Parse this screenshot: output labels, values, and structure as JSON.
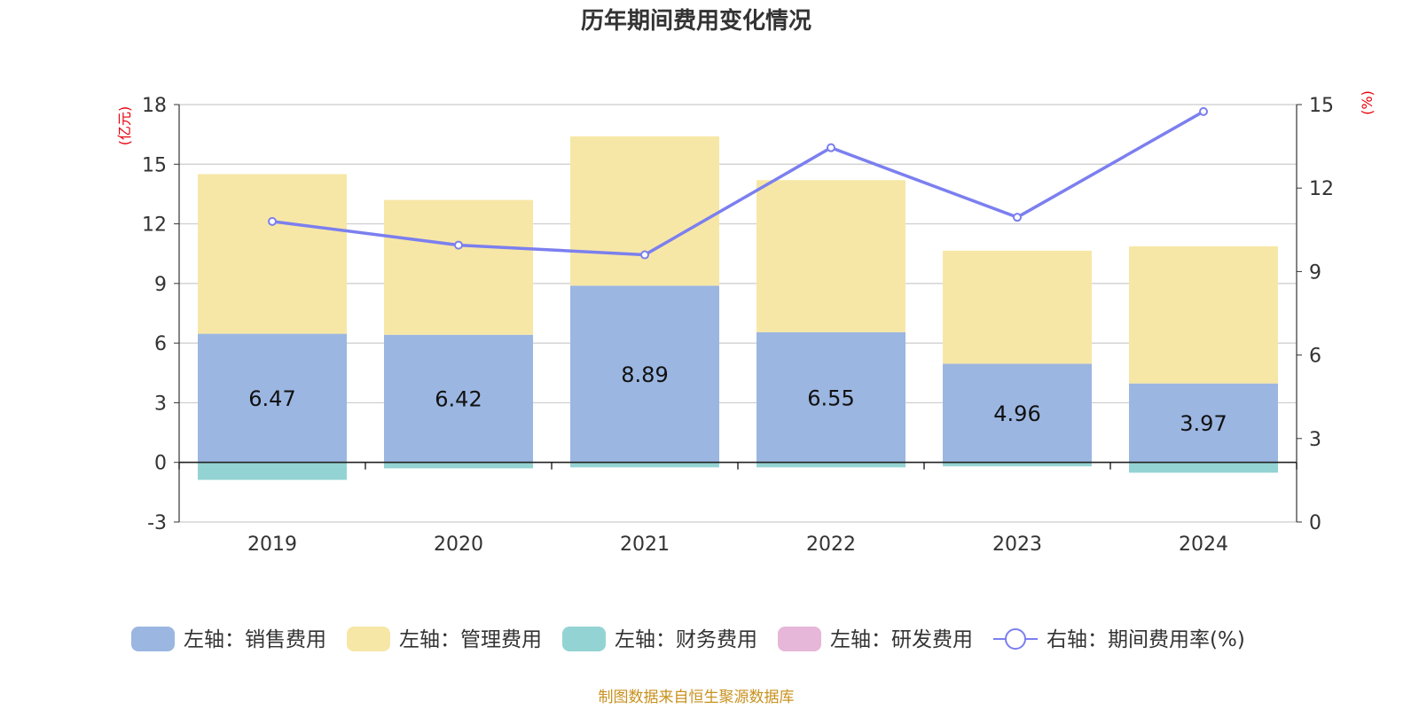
{
  "title": "历年期间费用变化情况",
  "source": "制图数据来自恒生聚源数据库",
  "chart_data": {
    "type": "bar",
    "categories": [
      "2019",
      "2020",
      "2021",
      "2022",
      "2023",
      "2024"
    ],
    "left_axis": {
      "unit": "(亿元)",
      "ylim": [
        -3,
        18
      ],
      "ticks": [
        "-3",
        "0",
        "3",
        "6",
        "9",
        "12",
        "15",
        "18"
      ]
    },
    "right_axis": {
      "unit": "(%)",
      "ylim": [
        0,
        15
      ],
      "ticks": [
        "0",
        "3",
        "6",
        "9",
        "12",
        "15"
      ]
    },
    "grid": true,
    "legend_position": "bottom",
    "series": [
      {
        "name": "左轴：销售费用",
        "type": "bar",
        "axis": "left",
        "color": "#9bb6e1",
        "values": [
          6.47,
          6.42,
          8.89,
          6.55,
          4.96,
          3.97
        ],
        "labels": [
          "6.47",
          "6.42",
          "8.89",
          "6.55",
          "4.96",
          "3.97"
        ]
      },
      {
        "name": "左轴：管理费用",
        "type": "bar",
        "axis": "left",
        "color": "#f7e7a6",
        "values": [
          8.03,
          6.78,
          7.51,
          7.65,
          5.69,
          6.9
        ]
      },
      {
        "name": "左轴：财务费用",
        "type": "bar",
        "axis": "left",
        "color": "#94d3d3",
        "values": [
          -0.88,
          -0.3,
          -0.25,
          -0.25,
          -0.2,
          -0.52
        ]
      },
      {
        "name": "左轴：研发费用",
        "type": "bar",
        "axis": "left",
        "color": "#e6b7d8",
        "values": [
          0,
          0,
          0,
          0,
          0,
          0
        ]
      },
      {
        "name": "右轴：期间费用率(%)",
        "type": "line",
        "axis": "right",
        "color": "#7b7fef",
        "values": [
          10.8,
          9.95,
          9.6,
          13.45,
          10.95,
          14.75
        ]
      }
    ]
  }
}
